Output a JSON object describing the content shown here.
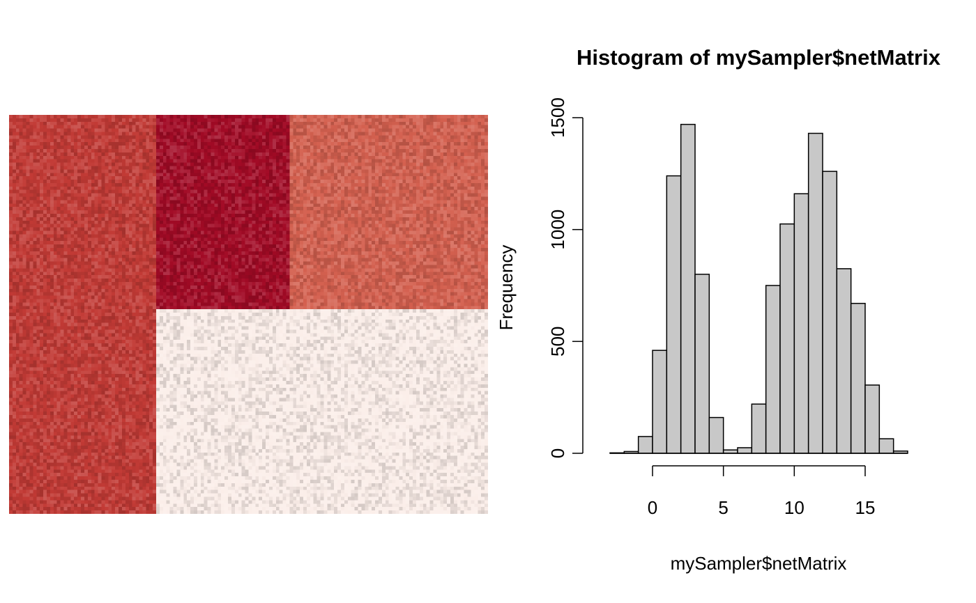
{
  "chart_data": [
    {
      "type": "heatmap",
      "title": "",
      "colors": {
        "light": "#fbeee9",
        "medium": "#d4604f",
        "dark": "#c23a35",
        "darkest": "#a20a25"
      },
      "blocks": {
        "row_fraction": [
          0.49,
          0.51
        ],
        "col_fraction": [
          0.307,
          0.276,
          0.417
        ],
        "levels": [
          [
            "dark",
            "darkest",
            "medium"
          ],
          [
            "dark",
            "light",
            "light"
          ]
        ]
      }
    },
    {
      "type": "bar",
      "subtype": "histogram",
      "title": "Histogram of mySampler$netMatrix",
      "xlabel": "mySampler$netMatrix",
      "ylabel": "Frequency",
      "bin_width": 1,
      "bins_start": [
        -3,
        -2,
        -1,
        0,
        1,
        2,
        3,
        4,
        5,
        6,
        7,
        8,
        9,
        10,
        11,
        12,
        13,
        14,
        15,
        16,
        17
      ],
      "values": [
        2,
        8,
        75,
        460,
        1240,
        1470,
        800,
        160,
        15,
        25,
        220,
        750,
        1025,
        1160,
        1430,
        1260,
        825,
        670,
        305,
        65,
        10
      ],
      "xlim": [
        -3,
        18
      ],
      "ylim": [
        0,
        1500
      ],
      "x_ticks": [
        0,
        5,
        10,
        15
      ],
      "y_ticks": [
        0,
        500,
        1000,
        1500
      ],
      "bar_color": "#c8c8c8",
      "grid": false
    }
  ]
}
